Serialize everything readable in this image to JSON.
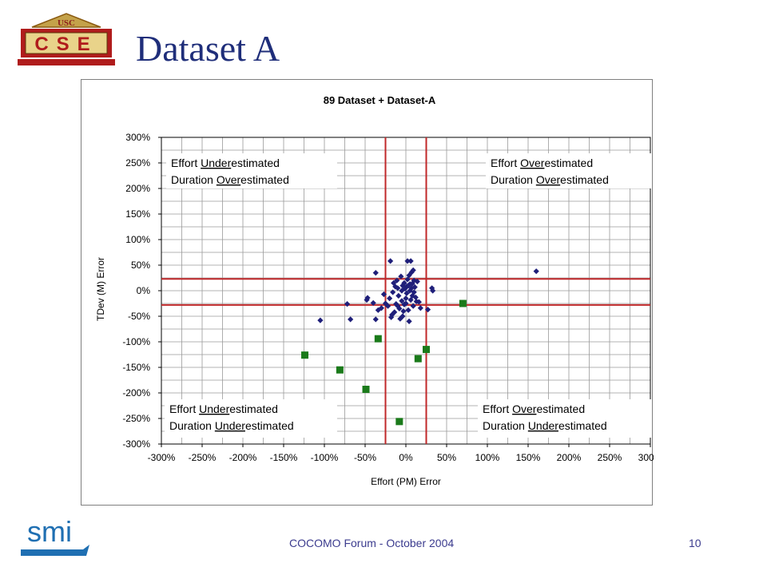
{
  "slide": {
    "title": "Dataset A",
    "footer": "COCOMO Forum - October 2004",
    "page_number": "10",
    "logo_top_text": "USC",
    "logo_main_text": "CSE",
    "logo_bottom_text": "smi",
    "colors": {
      "title": "#1f2e7a",
      "footer": "#3b3b8e",
      "logo_red": "#b01c1c",
      "logo_gold": "#d8b44a",
      "smi_blue": "#1f6fb2"
    }
  },
  "chart_data": {
    "type": "scatter",
    "title": "89 Dataset + Dataset-A",
    "xlabel": "Effort (PM) Error",
    "ylabel": "TDev (M) Error",
    "xlim": [
      -300,
      300
    ],
    "ylim": [
      -300,
      300
    ],
    "xticks": [
      "-300%",
      "-250%",
      "-200%",
      "-150%",
      "-100%",
      "-50%",
      "0%",
      "50%",
      "100%",
      "150%",
      "200%",
      "250%",
      "300%"
    ],
    "yticks": [
      "300%",
      "250%",
      "200%",
      "150%",
      "100%",
      "50%",
      "0%",
      "-50%",
      "-100%",
      "-150%",
      "-200%",
      "-250%",
      "-300%"
    ],
    "grid": true,
    "reference_lines": {
      "vertical": [
        -25,
        25
      ],
      "horizontal": [
        23,
        -28
      ],
      "color": "#c0282a"
    },
    "quadrant_labels": [
      {
        "line1": "Effort Underestimated",
        "line2": "Duration Overestimated",
        "u1": "Under",
        "u2": "Over",
        "position": "top-left"
      },
      {
        "line1": "Effort Overestimated",
        "line2": "Duration Overestimated",
        "u1": "Over",
        "u2": "Over",
        "position": "top-right"
      },
      {
        "line1": "Effort Underestimated",
        "line2": "Duration Underestimated",
        "u1": "Under",
        "u2": "Under",
        "position": "bottom-left"
      },
      {
        "line1": "Effort Overestimated",
        "line2": "Duration Underestimated",
        "u1": "Over",
        "u2": "Under",
        "position": "bottom-right"
      }
    ],
    "series": [
      {
        "marker": "diamond",
        "color": "#1f1f7a",
        "points": [
          [
            -105,
            -58
          ],
          [
            -72,
            -26
          ],
          [
            -68,
            -56
          ],
          [
            -48,
            -18
          ],
          [
            -47,
            -14
          ],
          [
            -40,
            -24
          ],
          [
            -37,
            35
          ],
          [
            -37,
            -56
          ],
          [
            -34,
            -38
          ],
          [
            -30,
            -34
          ],
          [
            -27,
            -7
          ],
          [
            -25,
            -25
          ],
          [
            -22,
            -30
          ],
          [
            -20,
            -15
          ],
          [
            -19,
            58
          ],
          [
            -18,
            -52
          ],
          [
            -17,
            -47
          ],
          [
            -16,
            -3
          ],
          [
            -15,
            15
          ],
          [
            -14,
            -42
          ],
          [
            -13,
            8
          ],
          [
            -12,
            -26
          ],
          [
            -11,
            20
          ],
          [
            -10,
            -30
          ],
          [
            -10,
            5
          ],
          [
            -9,
            -10
          ],
          [
            -8,
            -35
          ],
          [
            -7,
            -55
          ],
          [
            -6,
            28
          ],
          [
            -5,
            -20
          ],
          [
            -5,
            0
          ],
          [
            -4,
            10
          ],
          [
            -4,
            -50
          ],
          [
            -3,
            -40
          ],
          [
            -2,
            15
          ],
          [
            -2,
            -27
          ],
          [
            -1,
            4
          ],
          [
            0,
            -15
          ],
          [
            0,
            -25
          ],
          [
            1,
            8
          ],
          [
            1,
            -5
          ],
          [
            2,
            22
          ],
          [
            2,
            58
          ],
          [
            3,
            10
          ],
          [
            3,
            -38
          ],
          [
            4,
            -60
          ],
          [
            4,
            30
          ],
          [
            5,
            0
          ],
          [
            5,
            13
          ],
          [
            6,
            -18
          ],
          [
            6,
            58
          ],
          [
            7,
            5
          ],
          [
            7,
            36
          ],
          [
            8,
            -10
          ],
          [
            8,
            14
          ],
          [
            9,
            40
          ],
          [
            9,
            -30
          ],
          [
            10,
            20
          ],
          [
            10,
            -3
          ],
          [
            11,
            7
          ],
          [
            12,
            -13
          ],
          [
            13,
            -21
          ],
          [
            14,
            18
          ],
          [
            16,
            -22
          ],
          [
            18,
            -34
          ],
          [
            27,
            -37
          ],
          [
            32,
            5
          ],
          [
            33,
            0
          ],
          [
            160,
            38
          ]
        ]
      },
      {
        "marker": "square",
        "color": "#1a7a1a",
        "points": [
          [
            -124,
            -126
          ],
          [
            -81,
            -155
          ],
          [
            -49,
            -193
          ],
          [
            -34,
            -94
          ],
          [
            -8,
            -256
          ],
          [
            15,
            -133
          ],
          [
            25,
            -115
          ],
          [
            70,
            -25
          ]
        ]
      }
    ]
  }
}
